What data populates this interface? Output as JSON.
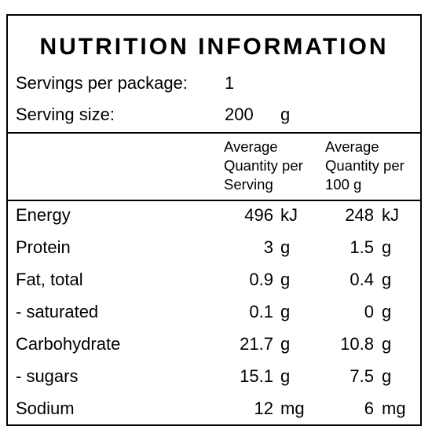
{
  "title": "NUTRITION INFORMATION",
  "servings": {
    "label": "Servings per package:",
    "value": "1"
  },
  "serving_size": {
    "label": "Serving size:",
    "value": "200",
    "unit": "g"
  },
  "headers": {
    "per_serving": "Average\nQuantity per\nServing",
    "per_100": "Average\nQuantity per\n100 g"
  },
  "rows": [
    {
      "name": "Energy",
      "serving": "496",
      "serving_unit": "kJ",
      "per100": "248",
      "per100_unit": "kJ"
    },
    {
      "name": "Protein",
      "serving": "3",
      "serving_unit": "g",
      "per100": "1.5",
      "per100_unit": "g"
    },
    {
      "name": "Fat, total",
      "serving": "0.9",
      "serving_unit": "g",
      "per100": "0.4",
      "per100_unit": "g"
    },
    {
      "name": "- saturated",
      "serving": "0.1",
      "serving_unit": "g",
      "per100": "0",
      "per100_unit": "g"
    },
    {
      "name": "Carbohydrate",
      "serving": "21.7",
      "serving_unit": "g",
      "per100": "10.8",
      "per100_unit": "g"
    },
    {
      "name": "- sugars",
      "serving": "15.1",
      "serving_unit": "g",
      "per100": "7.5",
      "per100_unit": "g"
    },
    {
      "name": "Sodium",
      "serving": "12",
      "serving_unit": "mg",
      "per100": "6",
      "per100_unit": "mg"
    }
  ]
}
